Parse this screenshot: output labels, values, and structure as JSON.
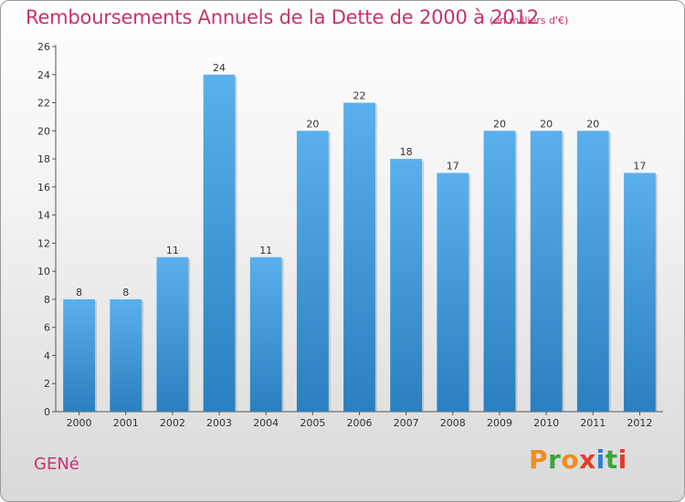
{
  "header": {
    "title": "Remboursements Annuels de la Dette de 2000 à 2012",
    "unit": "(en milliers d'€)"
  },
  "footer": {
    "commune": "GENé",
    "logo": {
      "letters": [
        "P",
        "r",
        "o",
        "x",
        "i",
        "t",
        "i"
      ],
      "colors": [
        "#f28c1e",
        "#3aa53a",
        "#f28c1e",
        "#e23c2a",
        "#2e7fd0",
        "#3aa53a",
        "#e23c2a"
      ]
    }
  },
  "chart_data": {
    "type": "bar",
    "title": "Remboursements Annuels de la Dette de 2000 à 2012",
    "categories": [
      "2000",
      "2001",
      "2002",
      "2003",
      "2004",
      "2005",
      "2006",
      "2007",
      "2008",
      "2009",
      "2010",
      "2011",
      "2012"
    ],
    "values": [
      8,
      8,
      11,
      24,
      11,
      20,
      22,
      18,
      17,
      20,
      20,
      20,
      17
    ],
    "ylim": [
      0,
      26
    ],
    "yticks": [
      0,
      2,
      4,
      6,
      8,
      10,
      12,
      14,
      16,
      18,
      20,
      22,
      24,
      26
    ],
    "grid": false,
    "bar_color_top": "#5ab0ec",
    "bar_color_bottom": "#2a7fc0",
    "xlabel": "",
    "ylabel": ""
  }
}
